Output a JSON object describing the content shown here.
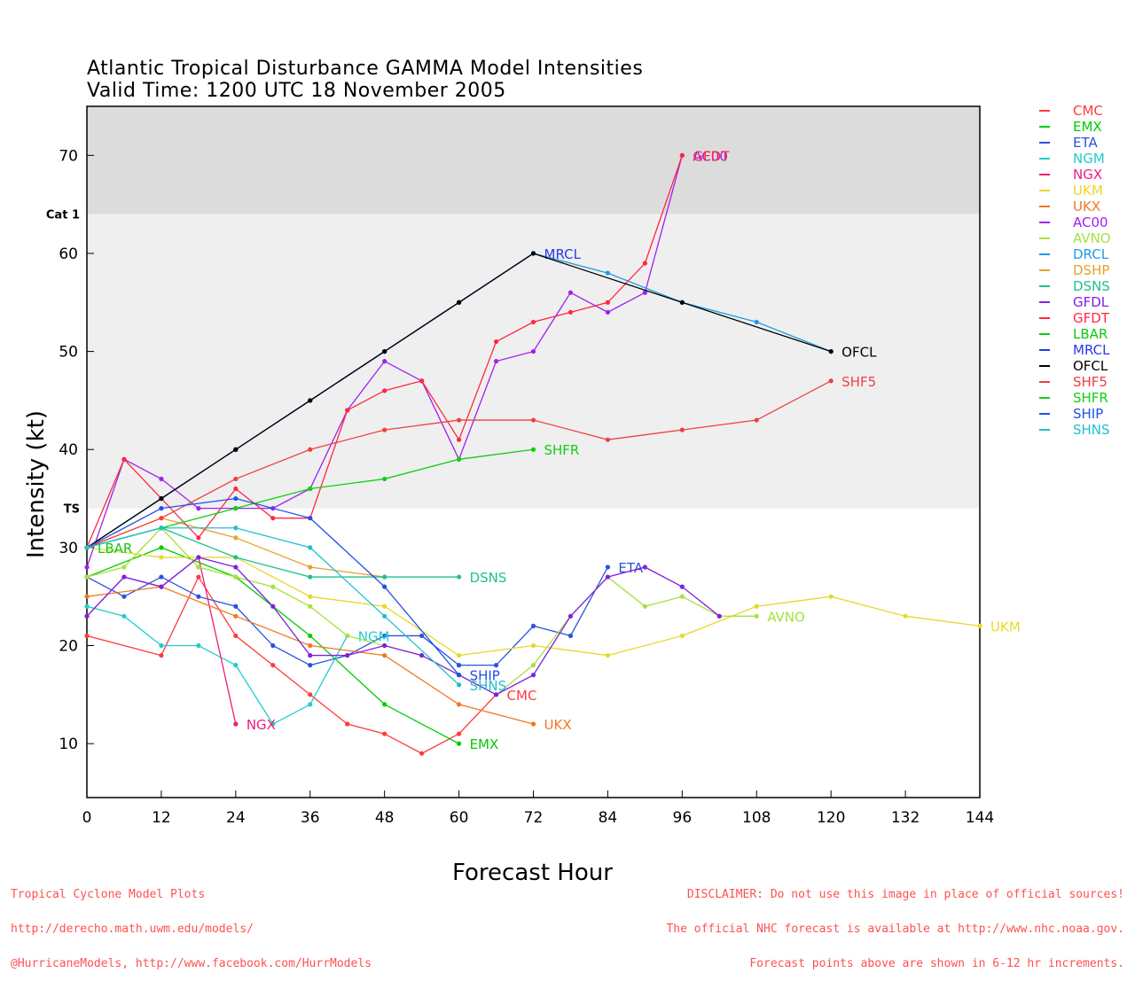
{
  "title_line1": "Atlantic Tropical Disturbance GAMMA Model Intensities",
  "title_line2": "Valid Time: 1200 UTC 18 November 2005",
  "footer_left": [
    "Tropical Cyclone Model Plots",
    "http://derecho.math.uwm.edu/models/",
    "@HurricaneModels, http://www.facebook.com/HurrModels"
  ],
  "footer_right": [
    "DISCLAIMER: Do not use this image in place of official sources!",
    "The official NHC forecast is available at http://www.nhc.noaa.gov.",
    "Forecast points above are shown in 6-12 hr increments."
  ],
  "chart_data": {
    "type": "line",
    "xlabel": "Forecast Hour",
    "ylabel": "Intensity (kt)",
    "xlim": [
      0,
      144
    ],
    "ylim": [
      4.5,
      75
    ],
    "xticks": [
      0,
      12,
      24,
      36,
      48,
      60,
      72,
      84,
      96,
      108,
      120,
      132,
      144
    ],
    "yticks": [
      10,
      20,
      30,
      40,
      50,
      60,
      70
    ],
    "bands": [
      {
        "from": 34,
        "to": 64,
        "label": "TS",
        "label_at": 34,
        "color": "#efefef"
      },
      {
        "from": 64,
        "to": 75,
        "label": "Cat 1",
        "label_at": 64,
        "color": "#dcdcdc"
      }
    ],
    "legend_position": "right",
    "series": [
      {
        "name": "CMC",
        "color": "#ff3b3b",
        "label": "CMC",
        "points": [
          [
            0,
            21
          ],
          [
            12,
            19
          ],
          [
            18,
            27
          ],
          [
            24,
            21
          ],
          [
            30,
            18
          ],
          [
            36,
            15
          ],
          [
            42,
            12
          ],
          [
            48,
            11
          ],
          [
            54,
            9
          ],
          [
            60,
            11
          ],
          [
            66,
            15
          ]
        ]
      },
      {
        "name": "EMX",
        "color": "#00cc00",
        "label": "EMX",
        "points": [
          [
            0,
            27
          ],
          [
            12,
            30
          ],
          [
            24,
            27
          ],
          [
            36,
            21
          ],
          [
            48,
            14
          ],
          [
            60,
            10
          ]
        ]
      },
      {
        "name": "ETA",
        "color": "#2a52e0",
        "label": "ETA",
        "points": [
          [
            0,
            27
          ],
          [
            6,
            25
          ],
          [
            12,
            27
          ],
          [
            18,
            25
          ],
          [
            24,
            24
          ],
          [
            30,
            20
          ],
          [
            36,
            18
          ],
          [
            42,
            19
          ],
          [
            48,
            21
          ],
          [
            54,
            21
          ],
          [
            60,
            18
          ],
          [
            66,
            18
          ],
          [
            72,
            22
          ],
          [
            78,
            21
          ],
          [
            84,
            28
          ]
        ]
      },
      {
        "name": "NGM",
        "color": "#22cccc",
        "label": "NGM",
        "points": [
          [
            0,
            24
          ],
          [
            6,
            23
          ],
          [
            12,
            20
          ],
          [
            18,
            20
          ],
          [
            24,
            18
          ],
          [
            30,
            12
          ],
          [
            36,
            14
          ],
          [
            42,
            21
          ]
        ]
      },
      {
        "name": "NGX",
        "color": "#ee1c7c",
        "label": "NGX",
        "points": [
          [
            0,
            23
          ],
          [
            6,
            27
          ],
          [
            12,
            26
          ],
          [
            18,
            29
          ],
          [
            24,
            12
          ]
        ]
      },
      {
        "name": "UKM",
        "color": "#e8d82a",
        "label": "UKM",
        "points": [
          [
            0,
            30
          ],
          [
            12,
            29
          ],
          [
            24,
            29
          ],
          [
            36,
            25
          ],
          [
            48,
            24
          ],
          [
            60,
            19
          ],
          [
            72,
            20
          ],
          [
            84,
            19
          ],
          [
            96,
            21
          ],
          [
            108,
            24
          ],
          [
            120,
            25
          ],
          [
            132,
            23
          ],
          [
            144,
            22
          ]
        ]
      },
      {
        "name": "UKX",
        "color": "#f07820",
        "label": "UKX",
        "points": [
          [
            0,
            25
          ],
          [
            12,
            26
          ],
          [
            24,
            23
          ],
          [
            36,
            20
          ],
          [
            48,
            19
          ],
          [
            60,
            14
          ],
          [
            72,
            12
          ]
        ]
      },
      {
        "name": "AC00",
        "color": "#a020f0",
        "label": "AC00",
        "points": [
          [
            0,
            28
          ],
          [
            6,
            39
          ],
          [
            12,
            37
          ],
          [
            18,
            34
          ],
          [
            24,
            34
          ],
          [
            30,
            34
          ],
          [
            36,
            36
          ],
          [
            42,
            44
          ],
          [
            48,
            49
          ],
          [
            54,
            47
          ],
          [
            60,
            39
          ],
          [
            66,
            49
          ],
          [
            72,
            50
          ],
          [
            78,
            56
          ],
          [
            84,
            54
          ],
          [
            90,
            56
          ],
          [
            96,
            70
          ]
        ]
      },
      {
        "name": "AVNO",
        "color": "#a8e040",
        "label": "AVNO",
        "points": [
          [
            0,
            27
          ],
          [
            6,
            28
          ],
          [
            12,
            32
          ],
          [
            18,
            28
          ],
          [
            24,
            27
          ],
          [
            30,
            26
          ],
          [
            36,
            24
          ],
          [
            42,
            21
          ],
          [
            48,
            20
          ],
          [
            54,
            19
          ],
          [
            60,
            17
          ],
          [
            66,
            15
          ],
          [
            72,
            18
          ],
          [
            78,
            23
          ],
          [
            84,
            27
          ],
          [
            90,
            24
          ],
          [
            96,
            25
          ],
          [
            102,
            23
          ],
          [
            108,
            23
          ]
        ]
      },
      {
        "name": "DRCL",
        "color": "#1e9ae8",
        "label": "",
        "points": [
          [
            0,
            30
          ],
          [
            12,
            35
          ],
          [
            24,
            40
          ],
          [
            36,
            45
          ],
          [
            48,
            50
          ],
          [
            60,
            55
          ],
          [
            72,
            60
          ],
          [
            84,
            58
          ],
          [
            96,
            55
          ],
          [
            108,
            53
          ],
          [
            120,
            50
          ]
        ]
      },
      {
        "name": "DSHP",
        "color": "#e8a030",
        "label": "",
        "points": [
          [
            0,
            30
          ],
          [
            12,
            33
          ],
          [
            24,
            31
          ],
          [
            36,
            28
          ],
          [
            48,
            27
          ]
        ]
      },
      {
        "name": "DSNS",
        "color": "#20c090",
        "label": "DSNS",
        "points": [
          [
            0,
            30
          ],
          [
            12,
            32
          ],
          [
            24,
            29
          ],
          [
            36,
            27
          ],
          [
            48,
            27
          ],
          [
            60,
            27
          ]
        ]
      },
      {
        "name": "GFDL",
        "color": "#8020e0",
        "label": "",
        "points": [
          [
            0,
            23
          ],
          [
            6,
            27
          ],
          [
            12,
            26
          ],
          [
            18,
            29
          ],
          [
            24,
            28
          ],
          [
            30,
            24
          ],
          [
            36,
            19
          ],
          [
            42,
            19
          ],
          [
            48,
            20
          ],
          [
            54,
            19
          ],
          [
            60,
            17
          ],
          [
            66,
            15
          ],
          [
            72,
            17
          ],
          [
            78,
            23
          ],
          [
            84,
            27
          ],
          [
            90,
            28
          ],
          [
            96,
            26
          ],
          [
            102,
            23
          ]
        ]
      },
      {
        "name": "GFDT",
        "color": "#ff2840",
        "label": "GFDT",
        "points": [
          [
            0,
            30
          ],
          [
            6,
            39
          ],
          [
            12,
            35
          ],
          [
            18,
            31
          ],
          [
            24,
            36
          ],
          [
            30,
            33
          ],
          [
            36,
            33
          ],
          [
            42,
            44
          ],
          [
            48,
            46
          ],
          [
            54,
            47
          ],
          [
            60,
            41
          ],
          [
            66,
            51
          ],
          [
            72,
            53
          ],
          [
            78,
            54
          ],
          [
            84,
            55
          ],
          [
            90,
            59
          ],
          [
            96,
            70
          ]
        ]
      },
      {
        "name": "LBAR",
        "color": "#10c810",
        "label": "LBAR",
        "points": [
          [
            0,
            30
          ]
        ]
      },
      {
        "name": "MRCL",
        "color": "#2a3ae8",
        "label": "MRCL",
        "points": [
          [
            0,
            30
          ],
          [
            12,
            35
          ],
          [
            24,
            40
          ],
          [
            36,
            45
          ],
          [
            48,
            50
          ],
          [
            60,
            55
          ],
          [
            72,
            60
          ]
        ]
      },
      {
        "name": "OFCL",
        "color": "#000000",
        "label": "OFCL",
        "points": [
          [
            0,
            30
          ],
          [
            12,
            35
          ],
          [
            24,
            40
          ],
          [
            36,
            45
          ],
          [
            48,
            50
          ],
          [
            60,
            55
          ],
          [
            72,
            60
          ],
          [
            96,
            55
          ],
          [
            120,
            50
          ]
        ]
      },
      {
        "name": "SHF5",
        "color": "#f04040",
        "label": "SHF5",
        "points": [
          [
            0,
            30
          ],
          [
            12,
            33
          ],
          [
            24,
            37
          ],
          [
            36,
            40
          ],
          [
            48,
            42
          ],
          [
            60,
            43
          ],
          [
            72,
            43
          ],
          [
            84,
            41
          ],
          [
            96,
            42
          ],
          [
            108,
            43
          ],
          [
            120,
            47
          ]
        ]
      },
      {
        "name": "SHFR",
        "color": "#10d010",
        "label": "SHFR",
        "points": [
          [
            0,
            30
          ],
          [
            12,
            32
          ],
          [
            24,
            34
          ],
          [
            36,
            36
          ],
          [
            48,
            37
          ],
          [
            60,
            39
          ],
          [
            72,
            40
          ]
        ]
      },
      {
        "name": "SHIP",
        "color": "#2050e8",
        "label": "SHIP",
        "points": [
          [
            0,
            30
          ],
          [
            12,
            34
          ],
          [
            24,
            35
          ],
          [
            36,
            33
          ],
          [
            48,
            26
          ],
          [
            60,
            17
          ]
        ]
      },
      {
        "name": "SHNS",
        "color": "#20c0d0",
        "label": "SHNS",
        "points": [
          [
            0,
            30
          ],
          [
            12,
            32
          ],
          [
            24,
            32
          ],
          [
            36,
            30
          ],
          [
            48,
            23
          ],
          [
            60,
            16
          ]
        ]
      }
    ]
  }
}
